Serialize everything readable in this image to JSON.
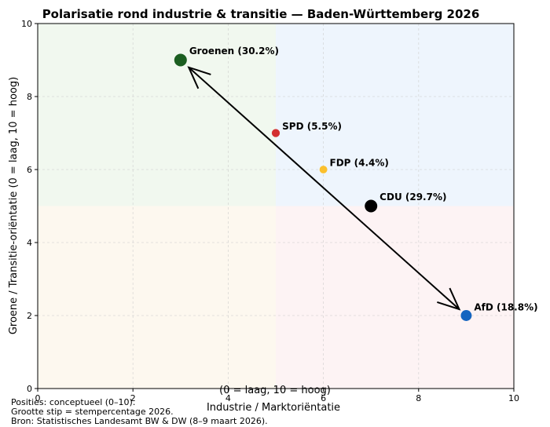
{
  "chart_data": {
    "type": "scatter",
    "title": "Polarisatie rond industrie & transitie — Baden-Württemberg 2026",
    "xlabel": "Industrie / Marktoriëntatie",
    "xlabel_note": "(0 = laag, 10 = hoog)",
    "ylabel": "Groene / Transitie-oriëntatie (0 = laag, 10 = hoog)",
    "xlim": [
      0,
      10
    ],
    "ylim": [
      0,
      10
    ],
    "xticks": [
      "0",
      "2",
      "4",
      "6",
      "8",
      "10"
    ],
    "yticks": [
      "0",
      "2",
      "4",
      "6",
      "8",
      "10"
    ],
    "grid": true,
    "quadrant_split": {
      "x": 5,
      "y": 5
    },
    "quadrant_colors": {
      "top_left": "#f1f8ef",
      "top_right": "#eef5fd",
      "bottom_left": "#fdf8ef",
      "bottom_right": "#fdf3f4"
    },
    "points": [
      {
        "label": "Groenen (30.2%)",
        "x": 3,
        "y": 9,
        "share": 30.2,
        "color": "#1b5e20"
      },
      {
        "label": "SPD (5.5%)",
        "x": 5,
        "y": 7,
        "share": 5.5,
        "color": "#d32f2f"
      },
      {
        "label": "FDP (4.4%)",
        "x": 6,
        "y": 6,
        "share": 4.4,
        "color": "#fbc02d"
      },
      {
        "label": "CDU (29.7%)",
        "x": 7,
        "y": 5,
        "share": 29.7,
        "color": "#000000"
      },
      {
        "label": "AfD (18.8%)",
        "x": 9,
        "y": 2,
        "share": 18.8,
        "color": "#1565c0"
      }
    ],
    "annotation_arrow": {
      "from": [
        3,
        9
      ],
      "to": [
        9,
        2
      ],
      "style": "double-headed"
    }
  },
  "footnotes": [
    "Posities: conceptueel (0–10).",
    "Grootte stip = stempercentage 2026.",
    "Bron: Statistisches Landesamt BW & DW (8–9 maart 2026)."
  ]
}
